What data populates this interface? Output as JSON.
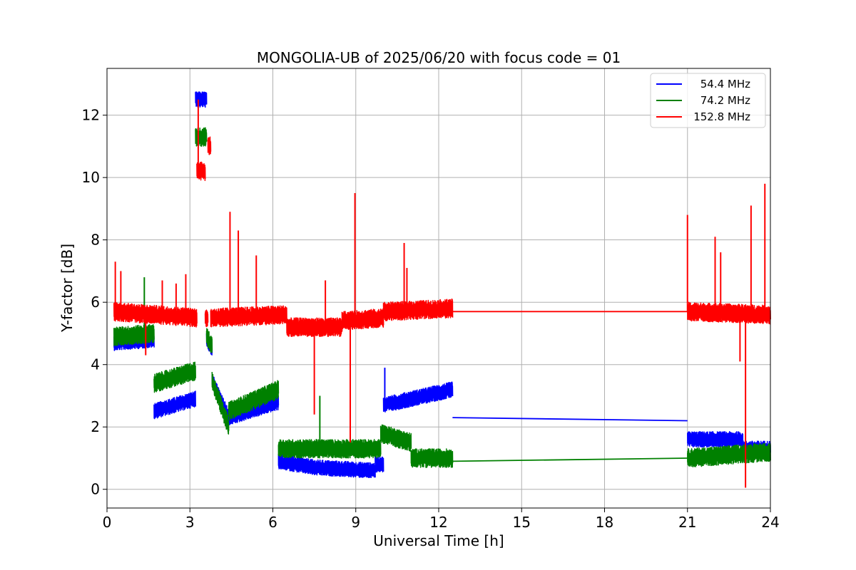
{
  "chart_data": {
    "type": "line",
    "title": "MONGOLIA-UB of 2025/06/20 with focus code = 01",
    "xlabel": "Universal Time [h]",
    "ylabel": "Y-factor [dB]",
    "xlim": [
      0,
      24
    ],
    "ylim": [
      -0.6,
      13.5
    ],
    "xticks": [
      0,
      3,
      6,
      9,
      12,
      15,
      18,
      21,
      24
    ],
    "yticks": [
      0,
      2,
      4,
      6,
      8,
      10,
      12
    ],
    "grid": true,
    "legend_position": "top-right",
    "series": [
      {
        "name": "54.4 MHz",
        "color": "#0000ff",
        "noise": 0.25,
        "segments": [
          [
            0.25,
            1.7,
            4.7,
            4.8
          ],
          [
            1.7,
            3.2,
            2.5,
            2.9
          ],
          [
            3.2,
            3.6,
            12.5,
            12.5
          ],
          [
            3.6,
            3.8,
            4.8,
            4.5
          ],
          [
            3.8,
            4.4,
            3.5,
            2.3
          ],
          [
            4.4,
            6.2,
            2.3,
            2.8
          ],
          [
            6.2,
            7.5,
            0.9,
            0.7
          ],
          [
            7.5,
            9.7,
            0.7,
            0.6
          ],
          [
            9.7,
            10.0,
            0.8,
            0.8
          ],
          [
            10.0,
            12.5,
            2.7,
            3.2
          ],
          [
            21.0,
            23.0,
            1.6,
            1.6
          ],
          [
            23.0,
            24.0,
            1.3,
            1.3
          ]
        ],
        "bridges": [
          [
            12.5,
            2.3,
            21.0,
            2.2
          ]
        ],
        "spikes": [
          [
            10.05,
            3.9
          ]
        ]
      },
      {
        "name": "74.2 MHz",
        "color": "#008000",
        "noise": 0.3,
        "segments": [
          [
            0.25,
            1.7,
            4.9,
            5.0
          ],
          [
            1.7,
            3.2,
            3.4,
            3.8
          ],
          [
            3.2,
            3.6,
            11.3,
            11.3
          ],
          [
            3.6,
            3.8,
            4.9,
            4.6
          ],
          [
            3.8,
            4.4,
            3.5,
            2.0
          ],
          [
            4.4,
            6.2,
            2.5,
            3.2
          ],
          [
            6.2,
            9.9,
            1.3,
            1.3
          ],
          [
            9.9,
            11.0,
            1.8,
            1.5
          ],
          [
            11.0,
            12.5,
            1.0,
            1.0
          ],
          [
            21.0,
            24.0,
            1.0,
            1.2
          ]
        ],
        "bridges": [
          [
            12.5,
            0.9,
            21.0,
            1.0
          ]
        ],
        "spikes": [
          [
            1.35,
            6.8
          ],
          [
            7.7,
            3.0
          ]
        ]
      },
      {
        "name": "152.8 MHz",
        "color": "#ff0000",
        "noise": 0.3,
        "segments": [
          [
            0.25,
            3.25,
            5.7,
            5.5
          ],
          [
            3.25,
            3.55,
            10.2,
            10.2
          ],
          [
            3.55,
            3.65,
            5.5,
            5.5
          ],
          [
            3.65,
            3.75,
            11.0,
            11.0
          ],
          [
            3.75,
            6.5,
            5.5,
            5.6
          ],
          [
            6.5,
            8.5,
            5.2,
            5.2
          ],
          [
            8.5,
            10.0,
            5.4,
            5.5
          ],
          [
            10.0,
            12.5,
            5.7,
            5.8
          ],
          [
            21.0,
            24.0,
            5.7,
            5.6
          ]
        ],
        "bridges": [
          [
            12.5,
            5.7,
            21.0,
            5.7
          ]
        ],
        "spikes": [
          [
            0.3,
            7.3
          ],
          [
            0.5,
            7.0
          ],
          [
            1.4,
            4.3
          ],
          [
            2.0,
            6.7
          ],
          [
            2.5,
            6.6
          ],
          [
            2.85,
            6.9
          ],
          [
            3.3,
            12.5
          ],
          [
            4.45,
            8.9
          ],
          [
            4.75,
            8.3
          ],
          [
            5.4,
            7.5
          ],
          [
            7.5,
            2.4
          ],
          [
            7.9,
            6.7
          ],
          [
            8.8,
            1.5
          ],
          [
            8.97,
            9.5
          ],
          [
            10.75,
            7.9
          ],
          [
            10.85,
            7.1
          ],
          [
            21.0,
            8.8
          ],
          [
            22.0,
            8.1
          ],
          [
            22.2,
            7.6
          ],
          [
            22.9,
            4.1
          ],
          [
            23.1,
            0.05
          ],
          [
            23.3,
            9.1
          ],
          [
            23.8,
            9.8
          ]
        ]
      }
    ]
  }
}
